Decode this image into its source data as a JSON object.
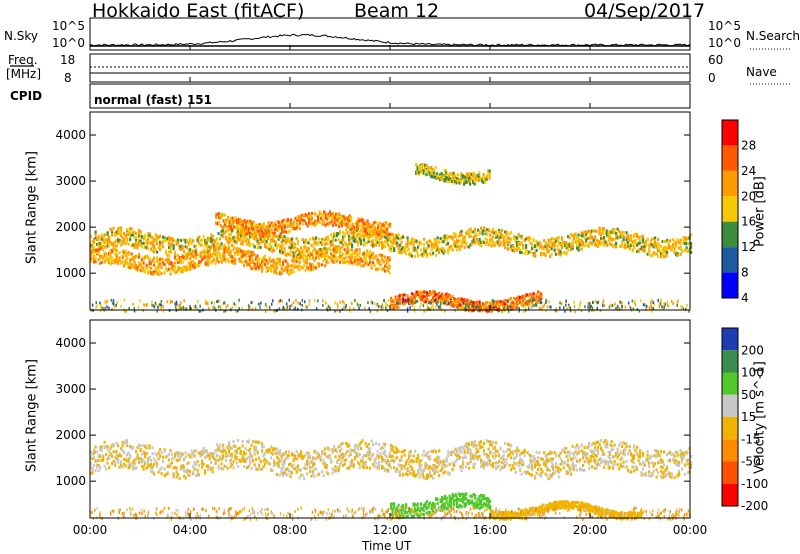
{
  "header": {
    "radar": "Hokkaido East (fitACF)",
    "beam": "Beam 12",
    "date": "04/Sep/2017"
  },
  "noise_panel": {
    "left_label": "N.Sky",
    "left_ticks": [
      "10^5",
      "10^0"
    ],
    "right_ticks": [
      "10^5",
      "10^0"
    ],
    "right_label": "N.Search"
  },
  "freq_panel": {
    "left_label": "Freq.",
    "left_unit": "[MHz]",
    "left_ticks": [
      "18",
      "8"
    ],
    "right_ticks": [
      "60",
      "0"
    ],
    "right_label": "Nave"
  },
  "cpid_panel": {
    "label": "CPID",
    "value": "normal (fast) 151"
  },
  "time_axis": {
    "ticks": [
      "00:00",
      "04:00",
      "08:00",
      "12:00",
      "16:00",
      "20:00",
      "00:00"
    ],
    "label": "Time UT"
  },
  "chart_data": [
    {
      "type": "heatmap",
      "panel": "power",
      "ylabel": "Slant Range [km]",
      "yticks": [
        "1000",
        "2000",
        "3000",
        "4000"
      ],
      "ylim": [
        200,
        4500
      ],
      "xlim": [
        "00:00",
        "24:00"
      ],
      "colorbar": {
        "label": "Power [dB]",
        "ticks": [
          "28",
          "24",
          "20",
          "16",
          "12",
          "8",
          "4"
        ],
        "colors": [
          "#ff0000",
          "#ff5a00",
          "#ff9a00",
          "#f5c800",
          "#3c8c3c",
          "#1e5aa0",
          "#0000ff"
        ]
      },
      "bands": [
        {
          "x0": 0,
          "x1": 24,
          "y": 1700,
          "w": 200,
          "intensity": 22
        },
        {
          "x0": 0,
          "x1": 12,
          "y": 1300,
          "w": 180,
          "intensity": 24
        },
        {
          "x0": 5,
          "x1": 12,
          "y": 2100,
          "w": 150,
          "intensity": 26
        },
        {
          "x0": 12,
          "x1": 18,
          "y": 400,
          "w": 120,
          "intensity": 28
        },
        {
          "x0": 13,
          "x1": 16,
          "y": 3200,
          "w": 120,
          "intensity": 20
        }
      ]
    },
    {
      "type": "heatmap",
      "panel": "velocity",
      "ylabel": "Slant Range [km]",
      "yticks": [
        "1000",
        "2000",
        "3000",
        "4000"
      ],
      "ylim": [
        200,
        4500
      ],
      "xlim": [
        "00:00",
        "24:00"
      ],
      "colorbar": {
        "label": "Velocity [m s^-1]",
        "ticks": [
          "200",
          "100",
          "50",
          "15",
          "-15",
          "-50",
          "-100",
          "-200"
        ],
        "colors": [
          "#1e3cb4",
          "#3c8c50",
          "#50c828",
          "#c8c8c8",
          "#f0b400",
          "#ff8c00",
          "#ff5000",
          "#ff0000"
        ]
      },
      "bands": [
        {
          "x0": 0,
          "x1": 24,
          "y": 1500,
          "w": 300,
          "velocity": 0
        },
        {
          "x0": 12,
          "x1": 16,
          "y": 500,
          "w": 150,
          "velocity": 50
        },
        {
          "x0": 16,
          "x1": 22,
          "y": 400,
          "w": 80,
          "velocity": -15
        }
      ]
    }
  ]
}
